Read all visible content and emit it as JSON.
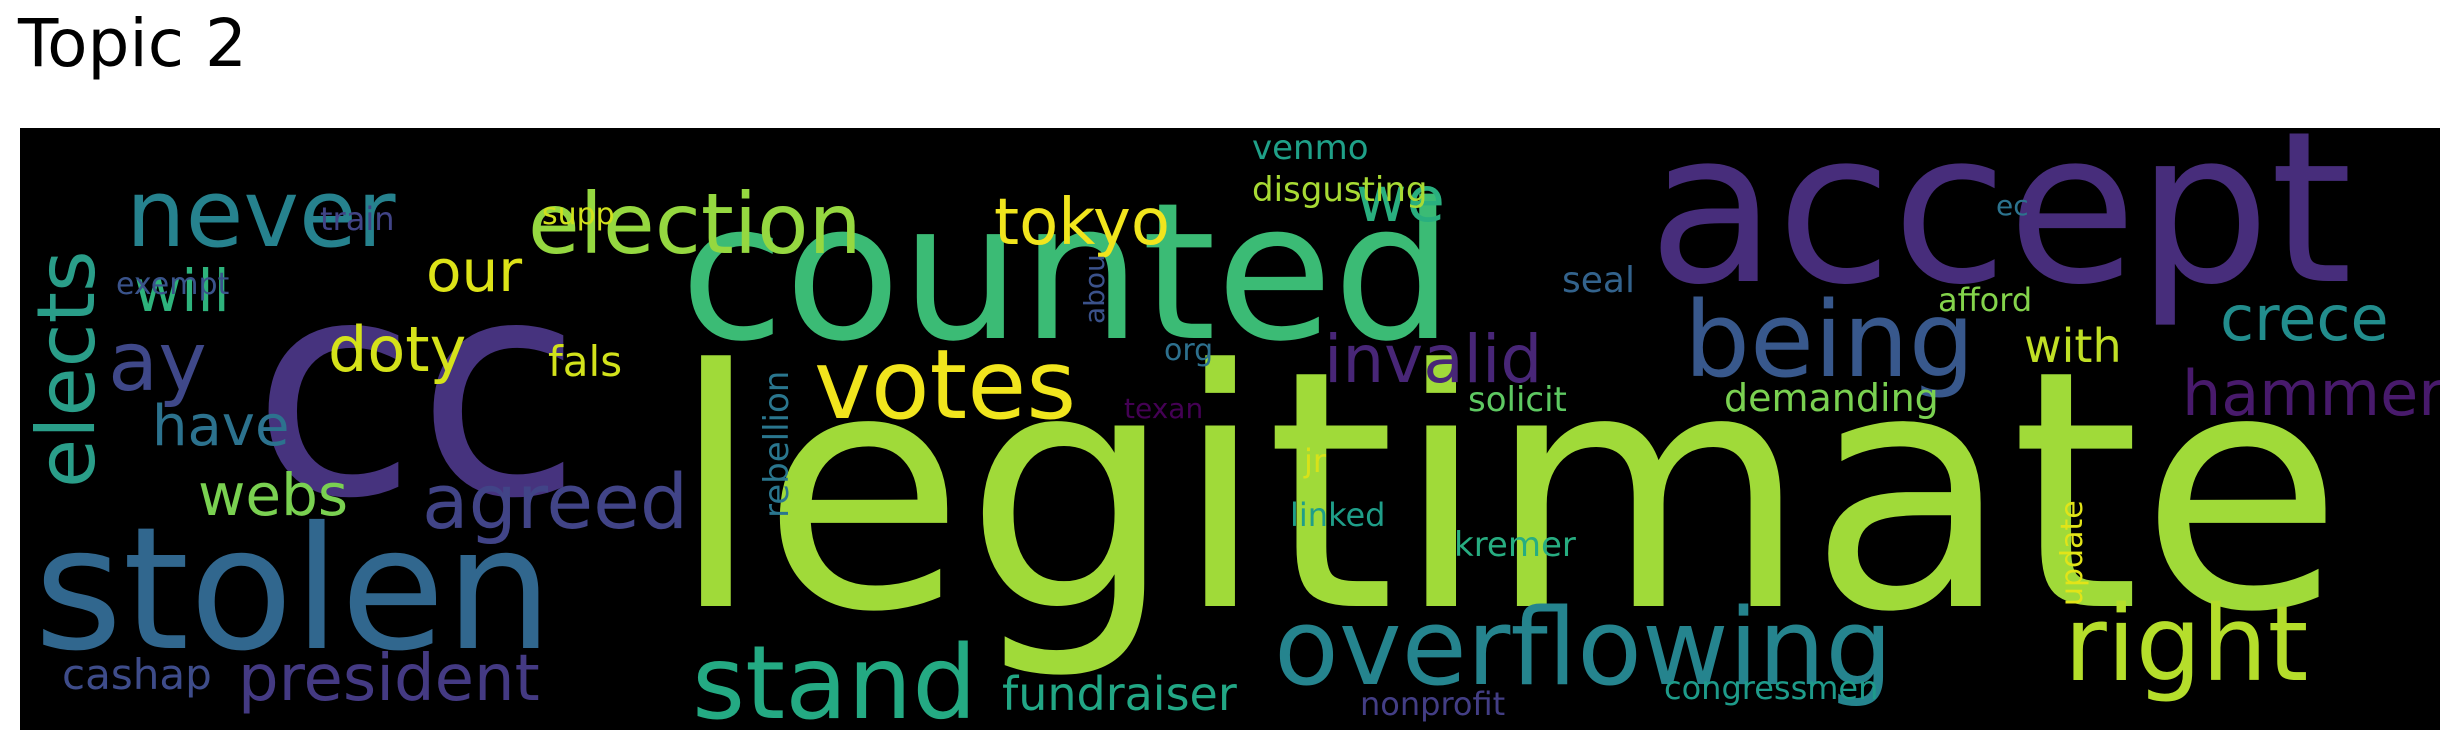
{
  "title": "Topic 2",
  "words": [
    {
      "text": "legitimate",
      "color": "#a0da39"
    },
    {
      "text": "cc",
      "color": "#46337e"
    },
    {
      "text": "counted",
      "color": "#3bbb75"
    },
    {
      "text": "accept",
      "color": "#472d7b"
    },
    {
      "text": "stolen",
      "color": "#31678e"
    },
    {
      "text": "overflowing",
      "color": "#25848e"
    },
    {
      "text": "votes",
      "color": "#f1e51d"
    },
    {
      "text": "being",
      "color": "#38588c"
    },
    {
      "text": "stand",
      "color": "#24aa83"
    },
    {
      "text": "never",
      "color": "#26828e"
    },
    {
      "text": "election",
      "color": "#95d840"
    },
    {
      "text": "right",
      "color": "#b5de2b"
    },
    {
      "text": "agreed",
      "color": "#414487"
    },
    {
      "text": "elects",
      "color": "#2a9e89"
    },
    {
      "text": "invalid",
      "color": "#482677"
    },
    {
      "text": "president",
      "color": "#443a83"
    },
    {
      "text": "tokyo",
      "color": "#f1e51d"
    },
    {
      "text": "ay",
      "color": "#3f4889"
    },
    {
      "text": "doty",
      "color": "#d5e21a"
    },
    {
      "text": "hammer",
      "color": "#481a6c"
    },
    {
      "text": "crece",
      "color": "#228d8d"
    },
    {
      "text": "webs",
      "color": "#7ad151"
    },
    {
      "text": "have",
      "color": "#2c728e"
    },
    {
      "text": "will",
      "color": "#2eb37c"
    },
    {
      "text": "our",
      "color": "#dde318"
    },
    {
      "text": "we",
      "color": "#29af7f"
    },
    {
      "text": "fundraiser",
      "color": "#22a785"
    },
    {
      "text": "cashap",
      "color": "#3e4c8a"
    },
    {
      "text": "with",
      "color": "#c0df25"
    },
    {
      "text": "fals",
      "color": "#d2e21b"
    },
    {
      "text": "rebellion",
      "color": "#2a768e"
    },
    {
      "text": "seal",
      "color": "#33638d"
    },
    {
      "text": "demanding",
      "color": "#7ad151"
    },
    {
      "text": "solicit",
      "color": "#5ec962"
    },
    {
      "text": "disgusting",
      "color": "#a8db34"
    },
    {
      "text": "update",
      "color": "#e2e418"
    },
    {
      "text": "afford",
      "color": "#84d44b"
    },
    {
      "text": "venmo",
      "color": "#1fa088"
    },
    {
      "text": "kremer",
      "color": "#27ad81"
    },
    {
      "text": "linked",
      "color": "#1f9e89"
    },
    {
      "text": "congressmen",
      "color": "#1e9b8a"
    },
    {
      "text": "nonprofit",
      "color": "#433e85"
    },
    {
      "text": "texan",
      "color": "#440154"
    },
    {
      "text": "abou",
      "color": "#3b528b"
    },
    {
      "text": "org",
      "color": "#2d708e"
    },
    {
      "text": "jr",
      "color": "#d8e219"
    },
    {
      "text": "train",
      "color": "#414487"
    },
    {
      "text": "supp",
      "color": "#d0e11c"
    },
    {
      "text": "exempt",
      "color": "#3a538b"
    },
    {
      "text": "ec",
      "color": "#2c738e"
    }
  ]
}
